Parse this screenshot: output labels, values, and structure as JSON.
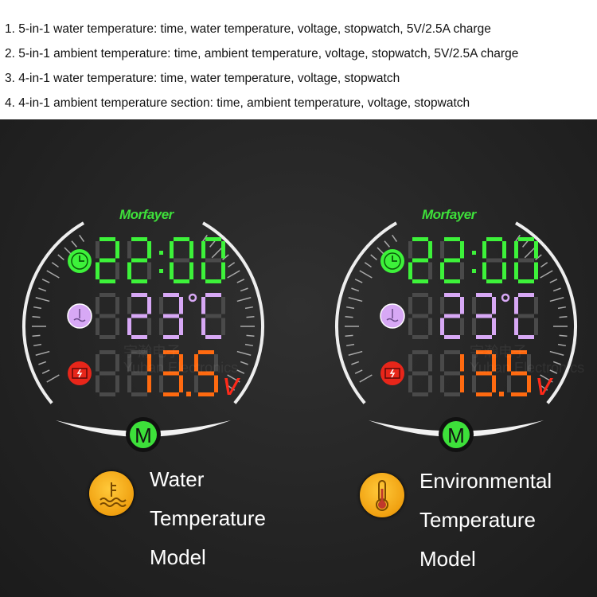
{
  "features": [
    "1. 5-in-1 water temperature: time, water temperature, voltage, stopwatch, 5V/2.5A charge",
    "2. 5-in-1 ambient temperature: time, ambient temperature, voltage, stopwatch, 5V/2.5A charge",
    "3. 4-in-1 water temperature: time, water temperature, voltage, stopwatch",
    "4. 4-in-1 ambient temperature section: time, ambient temperature, voltage, stopwatch"
  ],
  "brand": "Morfayer",
  "watermark": {
    "cn": "宇瀚电子",
    "en": "Yuhan Electronics"
  },
  "gauges": [
    {
      "time": "22:00",
      "temperature": "23",
      "temp_unit": "°C",
      "voltage": "13.5",
      "volt_unit": "V",
      "temp_icon": "water-temperature-icon",
      "button": "M"
    },
    {
      "time": "22:00",
      "temperature": "23",
      "temp_unit": "°C",
      "voltage": "13.5",
      "volt_unit": "V",
      "temp_icon": "thermometer-icon",
      "button": "M"
    }
  ],
  "legend": [
    {
      "lines": [
        "Water",
        "Temperature",
        "Model"
      ],
      "icon": "water-temperature-icon"
    },
    {
      "lines": [
        "Environmental",
        "Temperature",
        "Model"
      ],
      "icon": "thermometer-icon"
    }
  ],
  "colors": {
    "time": "#3df23a",
    "temperature": "#d7a8f5",
    "voltage": "#ff6a10",
    "volt_unit": "#ff2a1a",
    "ghost": "#4a4a4a",
    "legend_icon": "#f5a917"
  }
}
